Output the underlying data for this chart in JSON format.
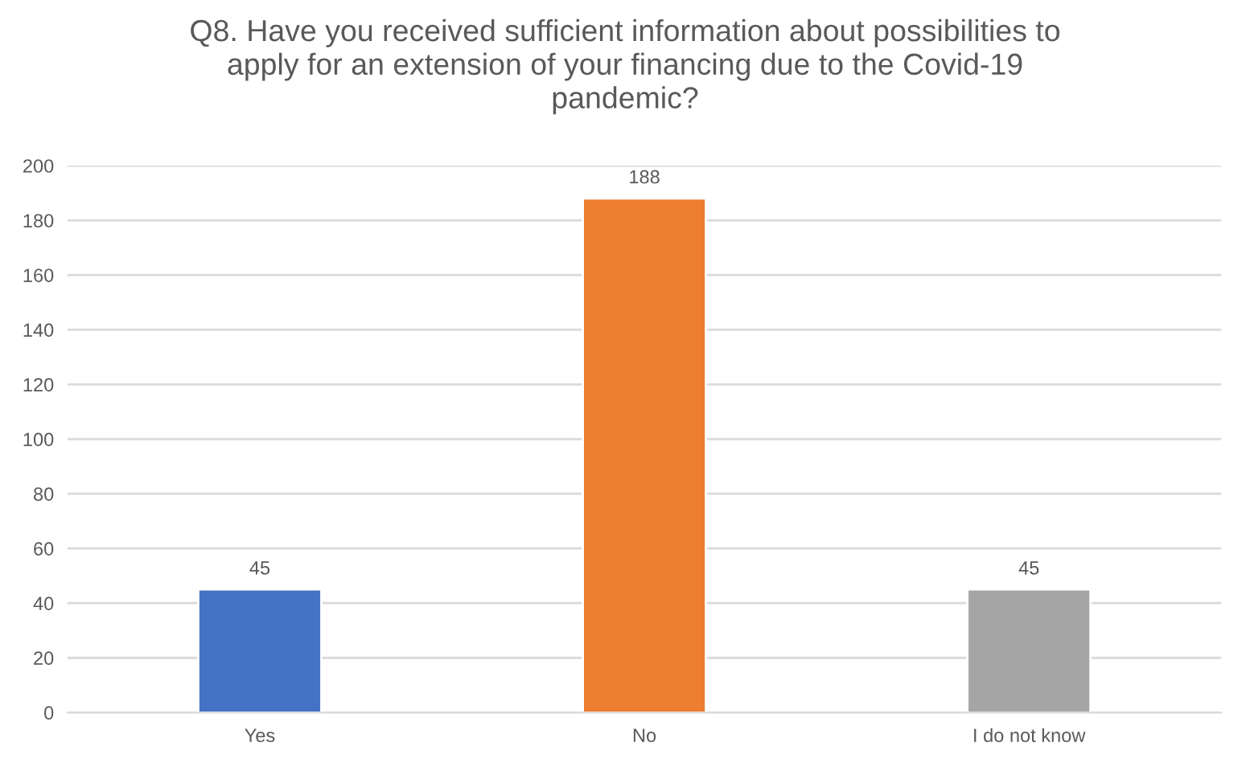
{
  "chart_data": {
    "type": "bar",
    "title": "Q8. Have you received sufficient information about possibilities to apply for an extension of your financing due to the Covid-19 pandemic?",
    "categories": [
      "Yes",
      "No",
      "I do not know"
    ],
    "values": [
      45,
      188,
      45
    ],
    "colors": [
      "#4472c4",
      "#ed7d31",
      "#a5a5a5"
    ],
    "ylim": [
      0,
      200
    ],
    "yticks": [
      0,
      20,
      40,
      60,
      80,
      100,
      120,
      140,
      160,
      180,
      200
    ],
    "grid": "y",
    "data_labels": true
  }
}
